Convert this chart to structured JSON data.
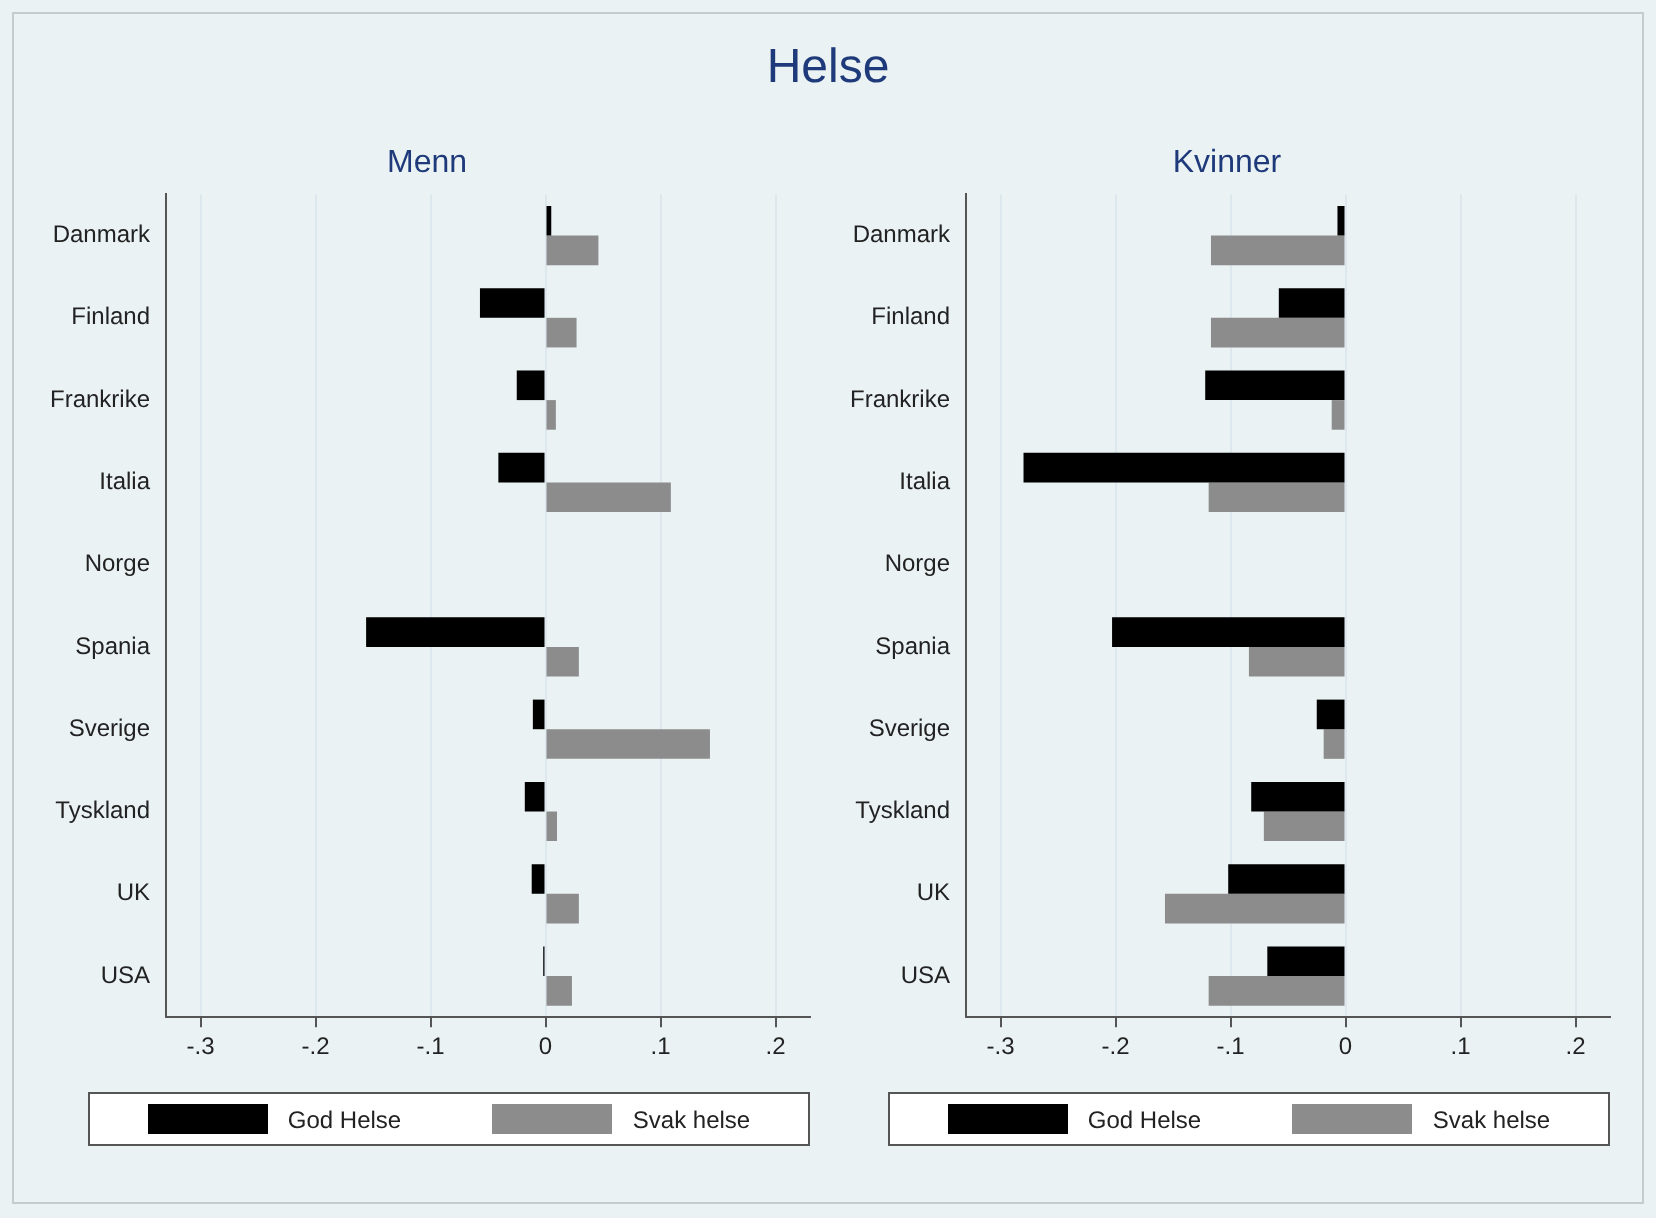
{
  "chart_data": [
    {
      "type": "bar",
      "orientation": "horizontal",
      "title": "Helse",
      "subtitle": "Menn",
      "categories": [
        "Danmark",
        "Finland",
        "Frankrike",
        "Italia",
        "Norge",
        "Spania",
        "Sverige",
        "Tyskland",
        "UK",
        "USA"
      ],
      "series": [
        {
          "name": "God Helse",
          "color": "#000000",
          "values": [
            0.005,
            -0.057,
            -0.025,
            -0.041,
            0,
            -0.156,
            -0.011,
            -0.018,
            -0.012,
            -0.002
          ]
        },
        {
          "name": "Svak helse",
          "color": "#8c8c8c",
          "values": [
            0.046,
            0.027,
            0.009,
            0.109,
            0,
            0.029,
            0.143,
            0.01,
            0.029,
            0.023
          ]
        }
      ],
      "xlim": [
        -0.33,
        0.23
      ],
      "xticks": [
        {
          "value": -0.3,
          "label": "-.3"
        },
        {
          "value": -0.2,
          "label": "-.2"
        },
        {
          "value": -0.1,
          "label": "-.1"
        },
        0,
        {
          "value": 0.1,
          "label": ".1"
        },
        {
          "value": 0.2,
          "label": ".2"
        }
      ],
      "grid": "x",
      "legend": "bottom"
    },
    {
      "type": "bar",
      "orientation": "horizontal",
      "subtitle": "Kvinner",
      "categories": [
        "Danmark",
        "Finland",
        "Frankrike",
        "Italia",
        "Norge",
        "Spania",
        "Sverige",
        "Tyskland",
        "UK",
        "USA"
      ],
      "series": [
        {
          "name": "God Helse",
          "color": "#000000",
          "values": [
            -0.007,
            -0.058,
            -0.122,
            -0.28,
            0,
            -0.203,
            -0.025,
            -0.082,
            -0.102,
            -0.068
          ]
        },
        {
          "name": "Svak helse",
          "color": "#8c8c8c",
          "values": [
            -0.117,
            -0.117,
            -0.012,
            -0.119,
            0,
            -0.084,
            -0.019,
            -0.071,
            -0.157,
            -0.119
          ]
        }
      ],
      "xlim": [
        -0.33,
        0.23
      ],
      "xticks": [
        {
          "value": -0.3,
          "label": "-.3"
        },
        {
          "value": -0.2,
          "label": "-.2"
        },
        {
          "value": -0.1,
          "label": "-.1"
        },
        0,
        {
          "value": 0.1,
          "label": ".1"
        },
        {
          "value": 0.2,
          "label": ".2"
        }
      ],
      "grid": "x",
      "legend": "bottom"
    }
  ]
}
